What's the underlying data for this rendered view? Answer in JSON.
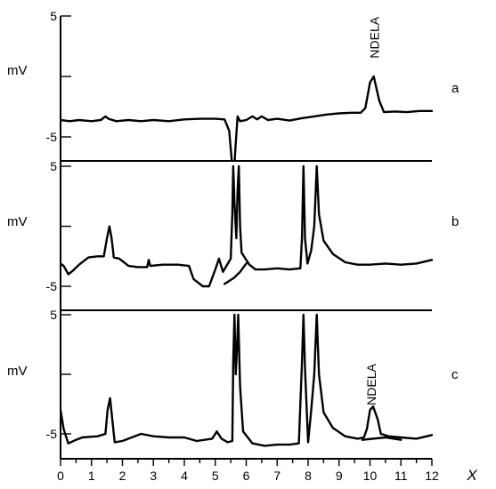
{
  "chart_data": {
    "type": "line",
    "x_axis": {
      "label": "X",
      "range": [
        0,
        12
      ],
      "major_ticks": [
        0,
        1,
        2,
        3,
        4,
        5,
        6,
        7,
        8,
        9,
        10,
        11,
        12
      ],
      "minor_step": 0.5
    },
    "shared_x": true,
    "grid": false,
    "legend": "none",
    "colors": {
      "trace": "#000000",
      "axes": "#000000",
      "background": "#ffffff"
    },
    "panels": [
      {
        "label": "a",
        "y_unit": "mV",
        "y_ticks": [
          5,
          -5
        ],
        "ylim": [
          -9,
          7
        ],
        "annotations": [
          {
            "text": "NDELA",
            "x": 10.15,
            "y": 1.5
          }
        ],
        "series": [
          {
            "points": [
              [
                0.0,
                -3.6
              ],
              [
                0.3,
                -3.7
              ],
              [
                0.6,
                -3.6
              ],
              [
                1.0,
                -3.7
              ],
              [
                1.3,
                -3.6
              ],
              [
                1.45,
                -3.3
              ],
              [
                1.55,
                -3.5
              ],
              [
                1.8,
                -3.7
              ],
              [
                2.2,
                -3.6
              ],
              [
                2.6,
                -3.7
              ],
              [
                3.0,
                -3.6
              ],
              [
                3.5,
                -3.7
              ],
              [
                4.0,
                -3.55
              ],
              [
                4.5,
                -3.5
              ],
              [
                5.0,
                -3.5
              ],
              [
                5.3,
                -3.55
              ],
              [
                5.45,
                -4.5
              ],
              [
                5.55,
                -7.5
              ],
              [
                5.6,
                -8.2
              ],
              [
                5.65,
                -6.0
              ],
              [
                5.72,
                -3.3
              ],
              [
                5.8,
                -3.7
              ],
              [
                6.0,
                -3.6
              ],
              [
                6.2,
                -3.3
              ],
              [
                6.35,
                -3.55
              ],
              [
                6.5,
                -3.3
              ],
              [
                6.7,
                -3.6
              ],
              [
                7.0,
                -3.5
              ],
              [
                7.4,
                -3.65
              ],
              [
                7.8,
                -3.45
              ],
              [
                8.2,
                -3.3
              ],
              [
                8.6,
                -3.15
              ],
              [
                9.0,
                -3.05
              ],
              [
                9.4,
                -3.0
              ],
              [
                9.7,
                -3.0
              ],
              [
                9.85,
                -2.6
              ],
              [
                10.0,
                -0.5
              ],
              [
                10.12,
                0.0
              ],
              [
                10.3,
                -2.0
              ],
              [
                10.45,
                -2.95
              ],
              [
                10.8,
                -2.9
              ],
              [
                11.2,
                -2.95
              ],
              [
                11.6,
                -2.85
              ],
              [
                12.0,
                -2.85
              ]
            ]
          }
        ]
      },
      {
        "label": "b",
        "y_unit": "mV",
        "y_ticks": [
          5,
          -5
        ],
        "ylim": [
          -7,
          5
        ],
        "annotations": [],
        "series": [
          {
            "points": [
              [
                0.0,
                -3.1
              ],
              [
                0.1,
                -3.3
              ],
              [
                0.25,
                -4.0
              ],
              [
                0.4,
                -3.7
              ],
              [
                0.6,
                -3.2
              ],
              [
                0.9,
                -2.6
              ],
              [
                1.2,
                -2.5
              ],
              [
                1.4,
                -2.5
              ],
              [
                1.5,
                -1.0
              ],
              [
                1.58,
                0.0
              ],
              [
                1.65,
                -1.0
              ],
              [
                1.72,
                -2.6
              ],
              [
                1.9,
                -2.7
              ],
              [
                2.2,
                -3.3
              ],
              [
                2.5,
                -3.4
              ],
              [
                2.8,
                -3.4
              ],
              [
                2.85,
                -2.8
              ],
              [
                2.9,
                -3.3
              ],
              [
                3.3,
                -3.2
              ],
              [
                3.8,
                -3.2
              ],
              [
                4.15,
                -3.3
              ],
              [
                4.3,
                -4.4
              ],
              [
                4.6,
                -5.0
              ],
              [
                4.8,
                -5.0
              ],
              [
                5.0,
                -3.6
              ],
              [
                5.12,
                -2.7
              ],
              [
                5.25,
                -3.8
              ],
              [
                5.5,
                -2.7
              ],
              [
                5.55,
                1.0
              ],
              [
                5.58,
                5.0
              ],
              [
                5.62,
                2.0
              ],
              [
                5.68,
                -1.0
              ],
              [
                5.72,
                3.0
              ],
              [
                5.76,
                5.0
              ],
              [
                5.8,
                0.0
              ],
              [
                5.85,
                -2.2
              ],
              [
                5.95,
                -2.6
              ],
              [
                6.1,
                -3.2
              ],
              [
                6.3,
                -3.6
              ],
              [
                6.6,
                -3.6
              ],
              [
                7.0,
                -3.5
              ],
              [
                7.4,
                -3.6
              ],
              [
                7.75,
                -3.5
              ],
              [
                7.8,
                -1.0
              ],
              [
                7.85,
                5.0
              ],
              [
                7.9,
                -1.0
              ],
              [
                7.98,
                -3.1
              ],
              [
                8.1,
                -2.0
              ],
              [
                8.2,
                0.0
              ],
              [
                8.28,
                5.0
              ],
              [
                8.35,
                1.0
              ],
              [
                8.5,
                -1.2
              ],
              [
                8.8,
                -2.3
              ],
              [
                9.2,
                -3.0
              ],
              [
                9.6,
                -3.2
              ],
              [
                10.0,
                -3.2
              ],
              [
                10.5,
                -3.1
              ],
              [
                11.0,
                -3.2
              ],
              [
                11.5,
                -3.1
              ],
              [
                12.0,
                -2.8
              ]
            ]
          },
          {
            "points": [
              [
                5.3,
                -4.8
              ],
              [
                5.6,
                -4.3
              ],
              [
                5.8,
                -3.8
              ],
              [
                6.0,
                -3.1
              ]
            ]
          }
        ]
      },
      {
        "label": "c",
        "y_unit": "mV",
        "y_ticks": [
          5,
          -5
        ],
        "ylim": [
          -7.5,
          5
        ],
        "annotations": [
          {
            "text": "NDELA",
            "x": 10.05,
            "y": -2.6
          }
        ],
        "series": [
          {
            "points": [
              [
                0.0,
                -3.0
              ],
              [
                0.1,
                -4.6
              ],
              [
                0.25,
                -5.8
              ],
              [
                0.5,
                -5.5
              ],
              [
                0.7,
                -5.3
              ],
              [
                1.2,
                -5.2
              ],
              [
                1.45,
                -5.0
              ],
              [
                1.52,
                -3.0
              ],
              [
                1.6,
                -2.0
              ],
              [
                1.68,
                -4.0
              ],
              [
                1.75,
                -5.7
              ],
              [
                2.0,
                -5.6
              ],
              [
                2.3,
                -5.3
              ],
              [
                2.6,
                -5.0
              ],
              [
                3.0,
                -5.2
              ],
              [
                3.5,
                -5.3
              ],
              [
                4.0,
                -5.3
              ],
              [
                4.4,
                -5.6
              ],
              [
                4.9,
                -5.4
              ],
              [
                5.05,
                -4.8
              ],
              [
                5.2,
                -5.4
              ],
              [
                5.4,
                -5.7
              ],
              [
                5.55,
                -5.6
              ],
              [
                5.58,
                1.0
              ],
              [
                5.62,
                5.0
              ],
              [
                5.66,
                0.0
              ],
              [
                5.7,
                2.0
              ],
              [
                5.74,
                5.0
              ],
              [
                5.8,
                -1.0
              ],
              [
                5.9,
                -4.8
              ],
              [
                6.2,
                -5.8
              ],
              [
                6.6,
                -6.0
              ],
              [
                7.0,
                -5.9
              ],
              [
                7.4,
                -5.9
              ],
              [
                7.7,
                -5.8
              ],
              [
                7.8,
                1.0
              ],
              [
                7.85,
                5.0
              ],
              [
                7.9,
                0.5
              ],
              [
                8.0,
                -5.7
              ],
              [
                8.1,
                -3.0
              ],
              [
                8.2,
                0.0
              ],
              [
                8.28,
                5.0
              ],
              [
                8.35,
                0.0
              ],
              [
                8.5,
                -3.2
              ],
              [
                8.8,
                -4.5
              ],
              [
                9.2,
                -5.2
              ],
              [
                9.6,
                -5.4
              ],
              [
                9.8,
                -5.3
              ],
              [
                9.9,
                -4.6
              ],
              [
                10.0,
                -3.0
              ],
              [
                10.1,
                -2.7
              ],
              [
                10.25,
                -3.8
              ],
              [
                10.35,
                -5.0
              ],
              [
                10.6,
                -5.2
              ],
              [
                11.0,
                -5.3
              ],
              [
                11.5,
                -5.4
              ],
              [
                12.0,
                -5.1
              ]
            ]
          },
          {
            "points": [
              [
                9.75,
                -5.5
              ],
              [
                10.5,
                -5.3
              ],
              [
                11.0,
                -5.5
              ]
            ]
          }
        ]
      }
    ]
  }
}
